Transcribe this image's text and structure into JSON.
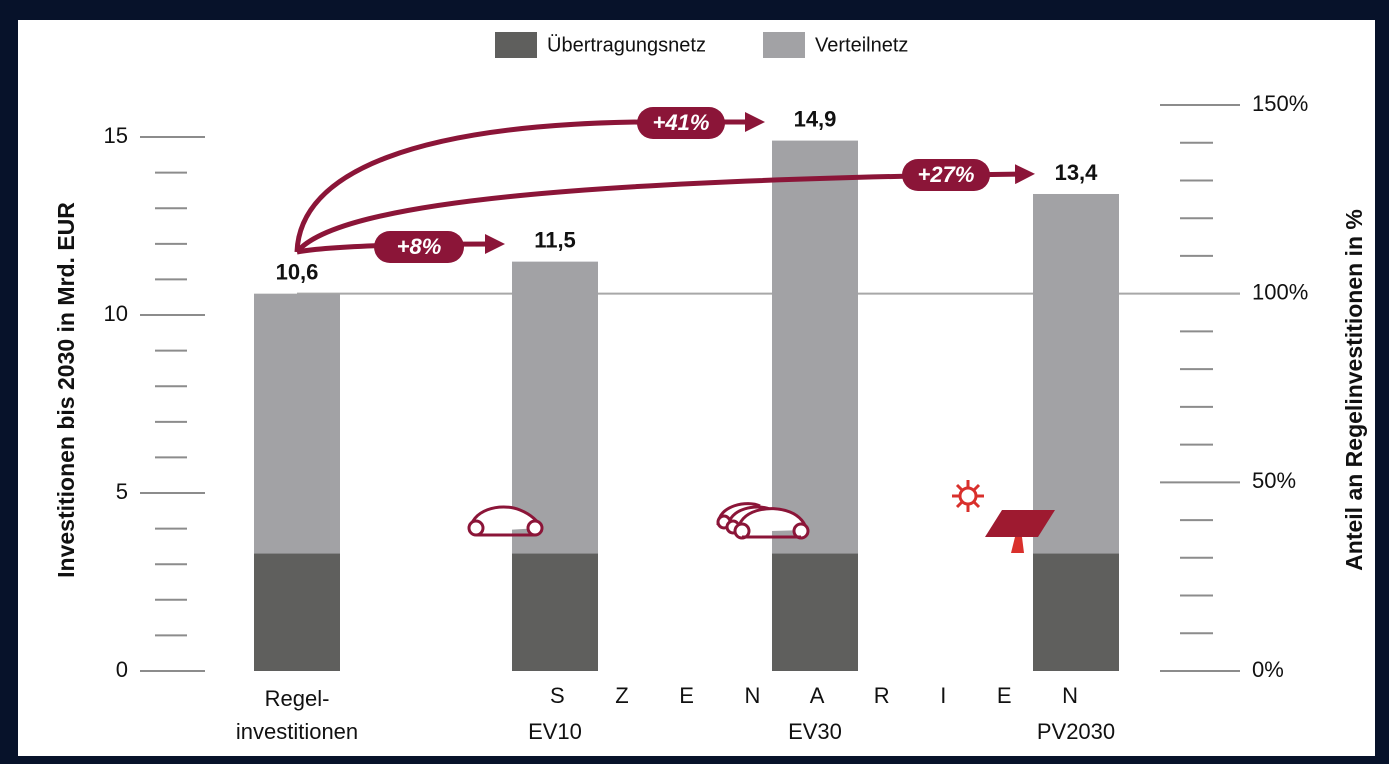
{
  "chart_data": {
    "type": "stacked_bar",
    "categories": [
      "Regel-\ninvestitionen",
      "EV10",
      "EV30",
      "PV2030"
    ],
    "series": [
      {
        "name": "Übertragungsnetz",
        "color": "#5f5f5d",
        "values": [
          3.3,
          3.3,
          3.3,
          3.3
        ]
      },
      {
        "name": "Verteilnetz",
        "color": "#a2a2a5",
        "values": [
          7.3,
          8.2,
          11.6,
          10.1
        ]
      }
    ],
    "totals": {
      "values": [
        10.6,
        11.5,
        14.9,
        13.4
      ],
      "value_labels": [
        "10,6",
        "11,5",
        "14,9",
        "13,4"
      ]
    },
    "ylabel": "Investitionen bis 2030 in Mrd. EUR",
    "y2label": "Anteil an Regelinvestitionen in %",
    "ylim": [
      0,
      15.9
    ],
    "yticks": [
      0,
      5,
      10,
      15
    ],
    "y_minor_ticks": [
      1,
      2,
      3,
      4,
      6,
      7,
      8,
      9,
      11,
      12,
      13,
      14
    ],
    "y2lim": [
      0,
      150
    ],
    "y2ticks": [
      {
        "value": 0,
        "label": "0%"
      },
      {
        "value": 50,
        "label": "50%"
      },
      {
        "value": 100,
        "label": "100%"
      },
      {
        "value": 150,
        "label": "150%"
      }
    ],
    "y2_minor_ticks": [
      10,
      20,
      30,
      40,
      60,
      70,
      80,
      90,
      110,
      120,
      130,
      140
    ],
    "y2_reference_line": 100,
    "group_label": "S Z E N A R I E N",
    "annotations": [
      "+41%",
      "+27%",
      "+8%"
    ],
    "legend": "top"
  }
}
